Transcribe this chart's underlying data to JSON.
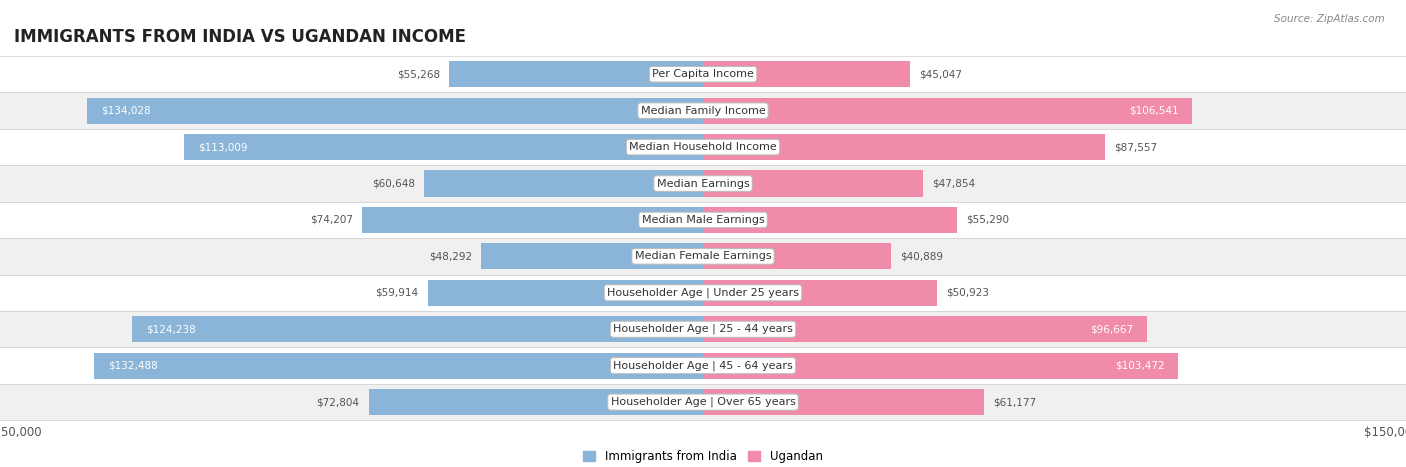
{
  "title": "IMMIGRANTS FROM INDIA VS UGANDAN INCOME",
  "source": "Source: ZipAtlas.com",
  "categories": [
    "Per Capita Income",
    "Median Family Income",
    "Median Household Income",
    "Median Earnings",
    "Median Male Earnings",
    "Median Female Earnings",
    "Householder Age | Under 25 years",
    "Householder Age | 25 - 44 years",
    "Householder Age | 45 - 64 years",
    "Householder Age | Over 65 years"
  ],
  "india_values": [
    55268,
    134028,
    113009,
    60648,
    74207,
    48292,
    59914,
    124238,
    132488,
    72804
  ],
  "ugandan_values": [
    45047,
    106541,
    87557,
    47854,
    55290,
    40889,
    50923,
    96667,
    103472,
    61177
  ],
  "india_color": "#8ab4d8",
  "ugandan_color": "#f08caa",
  "india_label": "Immigrants from India",
  "ugandan_label": "Ugandan",
  "x_max": 150000,
  "bar_height": 0.72,
  "fig_bg": "#ffffff",
  "row_bg_white": "#ffffff",
  "row_bg_gray": "#f0f0f0",
  "row_border": "#d0d0d0",
  "title_fontsize": 12,
  "label_fontsize": 8,
  "value_fontsize": 7.5,
  "axis_label_fontsize": 8.5
}
